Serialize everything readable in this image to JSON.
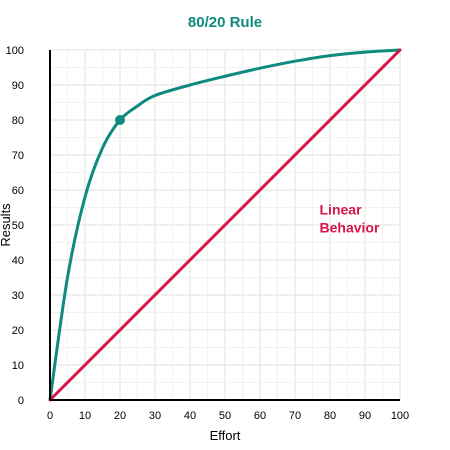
{
  "chart_data": {
    "type": "line",
    "title": "80/20 Rule",
    "xlabel": "Effort",
    "ylabel": "Results",
    "xlim": [
      0,
      100
    ],
    "ylim": [
      0,
      100
    ],
    "x_ticks": [
      0,
      10,
      20,
      30,
      40,
      50,
      60,
      70,
      80,
      90,
      100
    ],
    "y_ticks": [
      0,
      10,
      20,
      30,
      40,
      50,
      60,
      70,
      80,
      90,
      100
    ],
    "grid": true,
    "series": [
      {
        "color": "#0e8a7e",
        "x": [
          0,
          5,
          10,
          15,
          20,
          25,
          30,
          40,
          50,
          60,
          70,
          80,
          90,
          100
        ],
        "y": [
          0,
          35,
          58,
          72,
          80,
          84,
          87,
          90,
          92.5,
          94.8,
          96.8,
          98.4,
          99.4,
          100
        ]
      },
      {
        "name": "Linear Behavior",
        "color": "#d6174a",
        "x": [
          0,
          100
        ],
        "y": [
          0,
          100
        ]
      }
    ],
    "highlight_point": {
      "x": 20,
      "y": 80,
      "color": "#0e8a7e"
    },
    "annotations": [
      {
        "lines": [
          "Linear",
          "Behavior"
        ],
        "x": 77,
        "y": 53,
        "color": "#d6174a"
      }
    ]
  }
}
